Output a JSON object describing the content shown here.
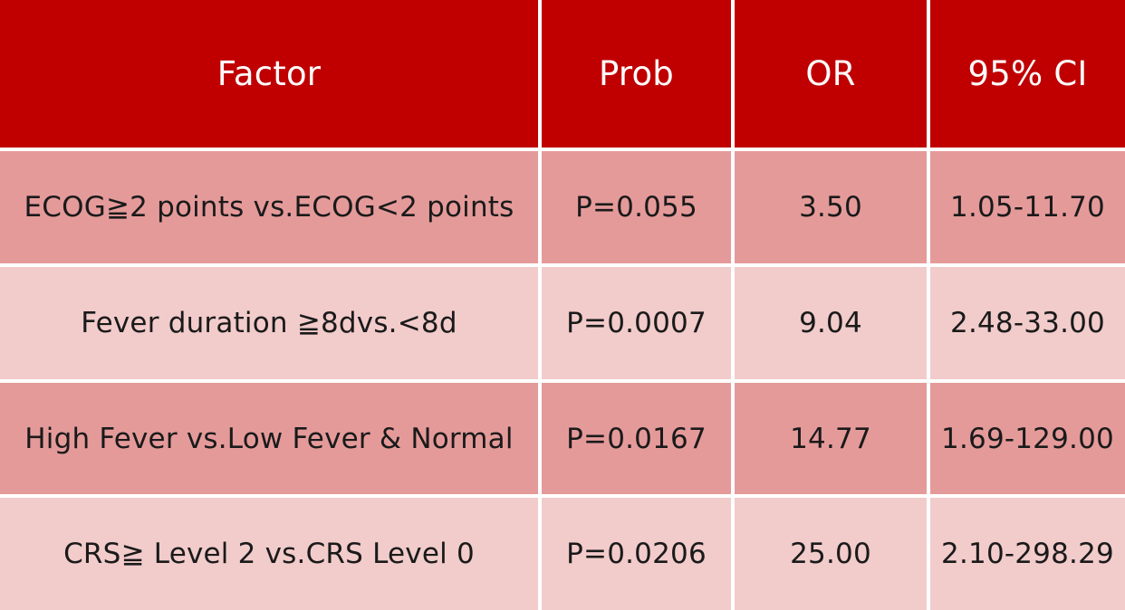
{
  "table": {
    "header": [
      "Factor",
      "Prob",
      "OR",
      "95% CI"
    ],
    "rows": [
      [
        "ECOG≧2 points vs.ECOG<2 points",
        "P=0.055",
        "3.50",
        "1.05-11.70"
      ],
      [
        "Fever duration ≧8dvs.<8d",
        "P=0.0007",
        "9.04",
        "2.48-33.00"
      ],
      [
        "High Fever vs.Low Fever & Normal",
        "P=0.0167",
        "14.77",
        "1.69-129.00"
      ],
      [
        "CRS≧ Level 2 vs.CRS Level 0",
        "P=0.0206",
        "25.00",
        "2.10-298.29"
      ]
    ]
  },
  "colors": {
    "header_bg": "#c00000",
    "row_dark": "#e59a9a",
    "row_light": "#f2cbcb",
    "grid_lines": "#ffffff"
  }
}
